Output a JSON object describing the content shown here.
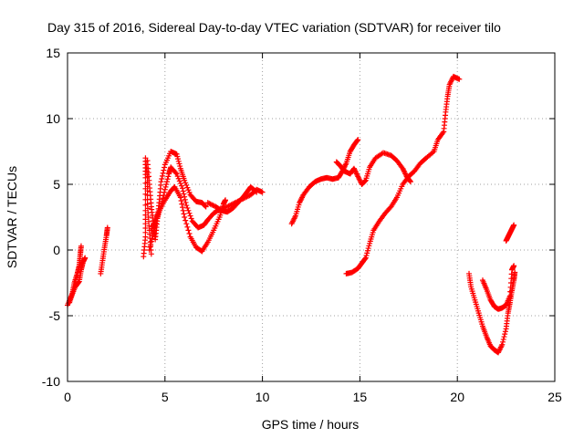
{
  "chart_data": {
    "type": "scatter",
    "title": "Day 315 of 2016, Sidereal Day-to-day VTEC variation (SDTVAR) for receiver tilo",
    "xlabel": "GPS time / hours",
    "ylabel": "SDTVAR / TECUs",
    "xlim": [
      0,
      25
    ],
    "ylim": [
      -10,
      15
    ],
    "xticks": [
      0,
      5,
      10,
      15,
      20,
      25
    ],
    "yticks": [
      -10,
      -5,
      0,
      5,
      10,
      15
    ],
    "grid": true,
    "marker": "+",
    "color": "#ff0000",
    "segments": [
      {
        "name": "s01",
        "points": [
          [
            0.0,
            -4.2
          ],
          [
            0.2,
            -3.5
          ],
          [
            0.4,
            -2.8
          ],
          [
            0.6,
            -2.4
          ],
          [
            0.7,
            -1.5
          ],
          [
            0.8,
            -0.9
          ],
          [
            0.9,
            -0.6
          ]
        ]
      },
      {
        "name": "s02",
        "points": [
          [
            0.1,
            -4.0
          ],
          [
            0.25,
            -3.3
          ],
          [
            0.35,
            -2.5
          ],
          [
            0.5,
            -1.8
          ],
          [
            0.6,
            -1.2
          ],
          [
            0.65,
            -0.4
          ],
          [
            0.7,
            0.3
          ]
        ]
      },
      {
        "name": "s03",
        "points": [
          [
            1.7,
            -1.8
          ],
          [
            1.8,
            -0.8
          ],
          [
            1.9,
            0.2
          ],
          [
            2.0,
            1.1
          ],
          [
            2.05,
            1.7
          ]
        ]
      },
      {
        "name": "s04",
        "points": [
          [
            3.9,
            -0.5
          ],
          [
            4.0,
            1.0
          ],
          [
            4.0,
            3.0
          ],
          [
            4.0,
            5.5
          ],
          [
            4.0,
            7.0
          ],
          [
            4.1,
            5.5
          ],
          [
            4.1,
            3.5
          ],
          [
            4.2,
            1.5
          ],
          [
            4.3,
            -0.3
          ]
        ]
      },
      {
        "name": "s05",
        "points": [
          [
            4.1,
            6.8
          ],
          [
            4.2,
            5.0
          ],
          [
            4.3,
            3.3
          ],
          [
            4.4,
            2.0
          ],
          [
            4.5,
            0.8
          ],
          [
            4.6,
            2.2
          ],
          [
            4.7,
            3.6
          ],
          [
            4.8,
            5.2
          ],
          [
            5.0,
            6.5
          ],
          [
            5.3,
            7.5
          ],
          [
            5.6,
            7.3
          ],
          [
            5.8,
            6.2
          ],
          [
            6.0,
            5.3
          ],
          [
            6.3,
            4.2
          ],
          [
            6.6,
            3.7
          ],
          [
            6.9,
            3.6
          ],
          [
            7.1,
            3.3
          ]
        ]
      },
      {
        "name": "s06",
        "points": [
          [
            4.2,
            0.0
          ],
          [
            4.4,
            1.3
          ],
          [
            4.6,
            2.4
          ],
          [
            4.8,
            3.3
          ],
          [
            5.0,
            4.6
          ],
          [
            5.2,
            5.8
          ],
          [
            5.3,
            6.3
          ],
          [
            5.6,
            5.8
          ],
          [
            5.9,
            4.7
          ],
          [
            6.1,
            3.4
          ],
          [
            6.4,
            2.2
          ],
          [
            6.7,
            1.7
          ],
          [
            7.0,
            1.9
          ],
          [
            7.2,
            2.3
          ],
          [
            7.5,
            2.8
          ],
          [
            7.8,
            3.1
          ],
          [
            8.2,
            3.3
          ],
          [
            8.6,
            3.6
          ],
          [
            9.0,
            3.9
          ],
          [
            9.4,
            4.2
          ],
          [
            9.7,
            4.6
          ],
          [
            10.0,
            4.4
          ]
        ]
      },
      {
        "name": "s07",
        "points": [
          [
            4.3,
            1.5
          ],
          [
            4.5,
            2.3
          ],
          [
            4.7,
            3.0
          ],
          [
            5.0,
            3.8
          ],
          [
            5.3,
            4.5
          ],
          [
            5.5,
            4.8
          ],
          [
            5.8,
            4.0
          ],
          [
            6.0,
            2.5
          ],
          [
            6.3,
            1.0
          ],
          [
            6.6,
            0.2
          ],
          [
            6.9,
            -0.1
          ],
          [
            7.2,
            0.6
          ],
          [
            7.5,
            1.5
          ],
          [
            7.8,
            2.5
          ],
          [
            8.0,
            3.5
          ],
          [
            8.1,
            3.8
          ]
        ]
      },
      {
        "name": "s08",
        "points": [
          [
            7.2,
            3.6
          ],
          [
            7.6,
            3.3
          ],
          [
            7.9,
            3.0
          ],
          [
            8.2,
            2.9
          ],
          [
            8.5,
            3.2
          ],
          [
            8.8,
            3.7
          ],
          [
            9.0,
            4.0
          ],
          [
            9.2,
            4.4
          ],
          [
            9.4,
            4.8
          ],
          [
            9.7,
            4.4
          ]
        ]
      },
      {
        "name": "s09",
        "points": [
          [
            11.5,
            2.0
          ],
          [
            11.7,
            2.6
          ],
          [
            11.9,
            3.6
          ],
          [
            12.1,
            4.2
          ],
          [
            12.4,
            4.8
          ],
          [
            12.7,
            5.2
          ],
          [
            13.0,
            5.4
          ],
          [
            13.3,
            5.5
          ],
          [
            13.6,
            5.4
          ],
          [
            13.9,
            5.5
          ],
          [
            14.1,
            6.0
          ],
          [
            14.3,
            6.6
          ],
          [
            14.5,
            7.5
          ],
          [
            14.7,
            8.0
          ],
          [
            14.9,
            8.4
          ]
        ]
      },
      {
        "name": "s10",
        "points": [
          [
            13.8,
            6.7
          ],
          [
            14.0,
            6.4
          ],
          [
            14.2,
            6.0
          ],
          [
            14.5,
            5.8
          ],
          [
            14.7,
            6.2
          ],
          [
            14.9,
            5.6
          ],
          [
            15.1,
            5.0
          ],
          [
            15.3,
            5.3
          ],
          [
            15.5,
            6.3
          ],
          [
            15.8,
            7.0
          ],
          [
            16.2,
            7.4
          ],
          [
            16.6,
            7.2
          ],
          [
            16.9,
            6.8
          ],
          [
            17.2,
            6.2
          ],
          [
            17.4,
            5.6
          ],
          [
            17.6,
            5.2
          ]
        ]
      },
      {
        "name": "s11",
        "points": [
          [
            14.3,
            -1.8
          ],
          [
            14.6,
            -1.7
          ],
          [
            14.9,
            -1.4
          ],
          [
            15.1,
            -1.0
          ],
          [
            15.3,
            -0.6
          ],
          [
            15.5,
            0.5
          ],
          [
            15.7,
            1.5
          ],
          [
            16.0,
            2.2
          ],
          [
            16.3,
            2.8
          ],
          [
            16.6,
            3.3
          ],
          [
            16.9,
            4.0
          ],
          [
            17.2,
            5.0
          ],
          [
            17.5,
            5.6
          ],
          [
            17.8,
            6.0
          ],
          [
            18.1,
            6.6
          ],
          [
            18.4,
            7.0
          ],
          [
            18.8,
            7.5
          ],
          [
            19.0,
            8.4
          ],
          [
            19.3,
            9.0
          ],
          [
            19.4,
            10.5
          ],
          [
            19.5,
            11.7
          ],
          [
            19.6,
            12.6
          ],
          [
            19.8,
            13.2
          ],
          [
            20.1,
            13.0
          ]
        ]
      },
      {
        "name": "s12",
        "points": [
          [
            20.6,
            -1.8
          ],
          [
            20.7,
            -2.8
          ],
          [
            20.9,
            -3.8
          ],
          [
            21.1,
            -4.8
          ],
          [
            21.3,
            -5.8
          ],
          [
            21.5,
            -6.6
          ],
          [
            21.7,
            -7.3
          ],
          [
            21.9,
            -7.6
          ],
          [
            22.1,
            -7.8
          ],
          [
            22.3,
            -7.2
          ],
          [
            22.5,
            -6.0
          ],
          [
            22.6,
            -4.8
          ],
          [
            22.7,
            -4.0
          ],
          [
            22.8,
            -3.1
          ],
          [
            22.9,
            -2.3
          ],
          [
            22.95,
            -1.7
          ]
        ]
      },
      {
        "name": "s13",
        "points": [
          [
            21.3,
            -2.3
          ],
          [
            21.5,
            -3.0
          ],
          [
            21.7,
            -3.8
          ],
          [
            21.9,
            -4.3
          ],
          [
            22.1,
            -4.5
          ],
          [
            22.3,
            -4.4
          ],
          [
            22.5,
            -4.2
          ],
          [
            22.7,
            -3.5
          ],
          [
            22.8,
            -1.5
          ],
          [
            22.9,
            -1.2
          ]
        ]
      },
      {
        "name": "s14",
        "points": [
          [
            22.5,
            0.7
          ],
          [
            22.6,
            1.0
          ],
          [
            22.7,
            1.3
          ],
          [
            22.8,
            1.6
          ],
          [
            22.9,
            1.9
          ]
        ]
      }
    ]
  }
}
